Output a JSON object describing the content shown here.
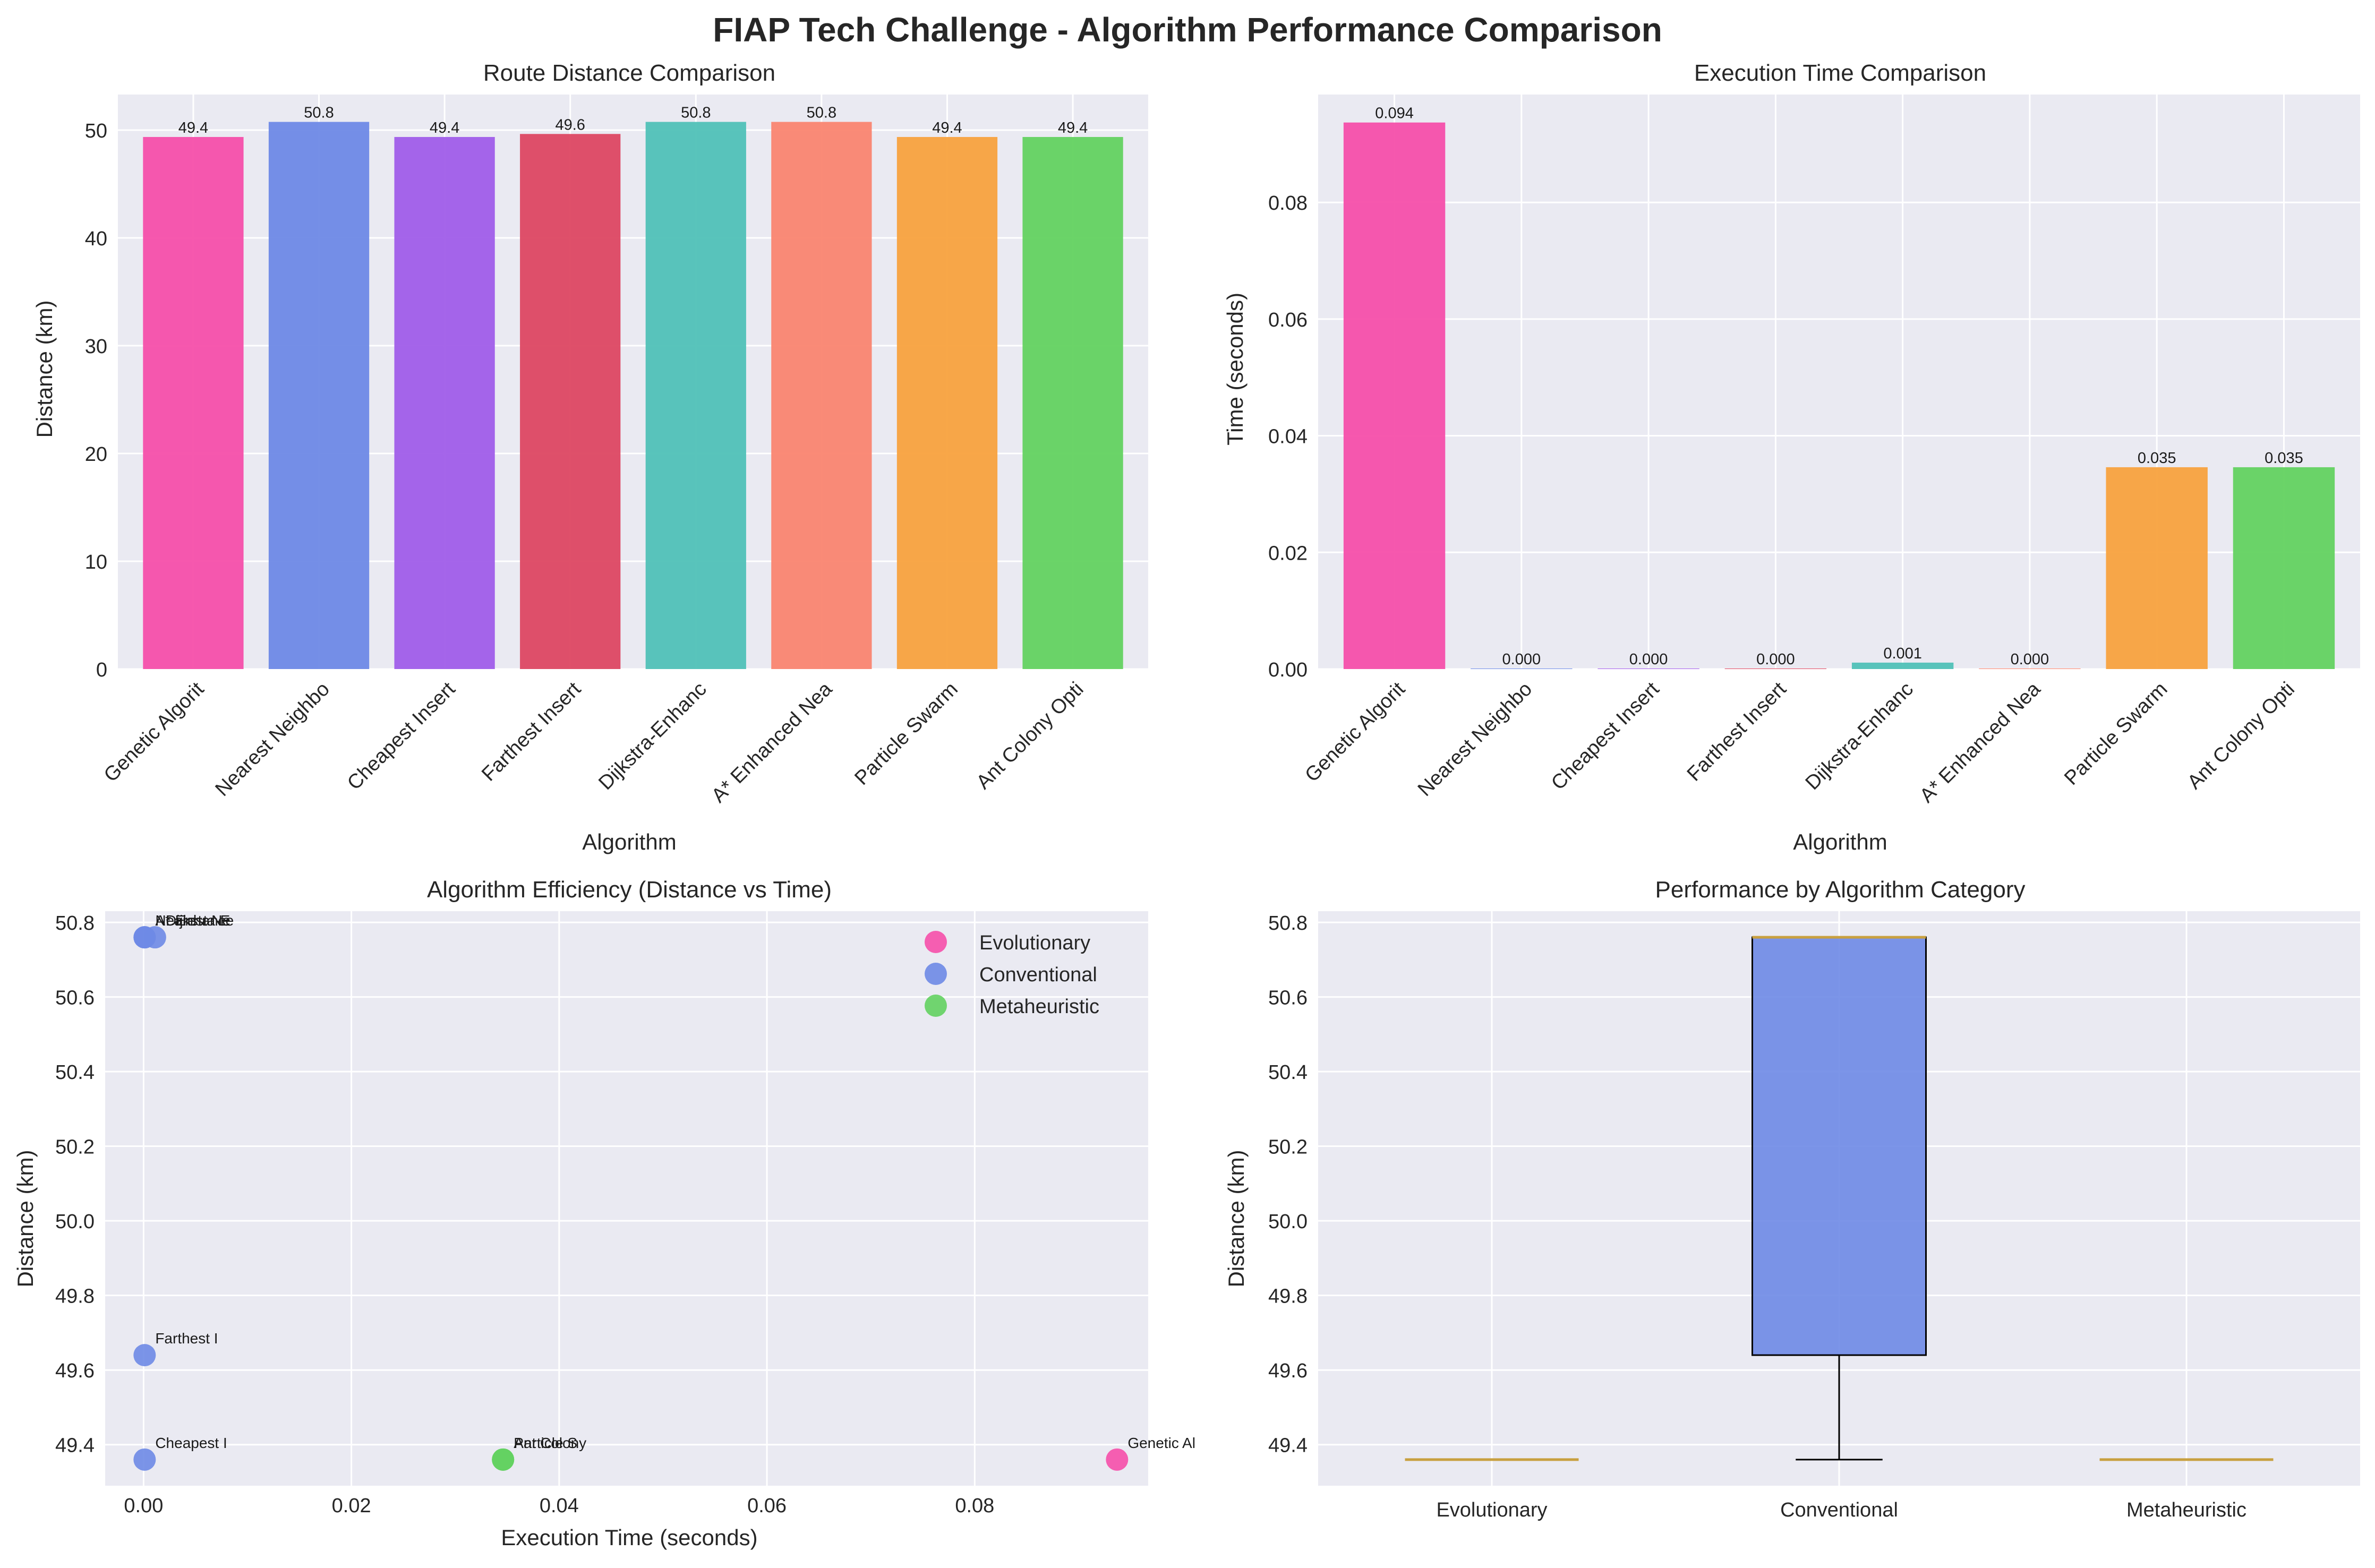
{
  "figure_title": "FIAP Tech Challenge - Algorithm Performance Comparison",
  "colors": {
    "plot_bg": "#EAEAF2",
    "grid": "#FFFFFF",
    "axis_text": "#262626",
    "label_text": "#1A1A1A",
    "series": [
      "#F64FAA",
      "#6E89E6",
      "#A05DE9",
      "#DD4762",
      "#50C1B7",
      "#FA8570",
      "#F8A23E",
      "#63D260"
    ],
    "whisker": "#000000",
    "median": "#C8A040"
  },
  "chart_data": [
    {
      "id": "distance-bar",
      "type": "bar",
      "title": "Route Distance Comparison",
      "xlabel": "Algorithm",
      "ylabel": "Distance (km)",
      "categories": [
        "Genetic Algorit",
        "Nearest Neighbo",
        "Cheapest Insert",
        "Farthest Insert",
        "Dijkstra-Enhanc",
        "A* Enhanced Nea",
        "Particle Swarm",
        "Ant Colony Opti"
      ],
      "values": [
        49.36,
        50.76,
        49.36,
        49.64,
        50.76,
        50.76,
        49.36,
        49.36
      ],
      "value_labels": [
        "49.4",
        "50.8",
        "49.4",
        "49.6",
        "50.8",
        "50.8",
        "49.4",
        "49.4"
      ],
      "ylim": [
        0,
        53.3
      ],
      "yticks": [
        0,
        10,
        20,
        30,
        40,
        50
      ],
      "ytick_labels": [
        "0",
        "10",
        "20",
        "30",
        "40",
        "50"
      ],
      "grid": true
    },
    {
      "id": "time-bar",
      "type": "bar",
      "title": "Execution Time Comparison",
      "xlabel": "Algorithm",
      "ylabel": "Time (seconds)",
      "categories": [
        "Genetic Algorit",
        "Nearest Neighbo",
        "Cheapest Insert",
        "Farthest Insert",
        "Dijkstra-Enhanc",
        "A* Enhanced Nea",
        "Particle Swarm",
        "Ant Colony Opti"
      ],
      "values": [
        0.0937,
        0.0001,
        0.0001,
        0.0001,
        0.0011,
        0.0001,
        0.0346,
        0.0346
      ],
      "value_labels": [
        "0.094",
        "0.000",
        "0.000",
        "0.000",
        "0.001",
        "0.000",
        "0.035",
        "0.035"
      ],
      "ylim": [
        0,
        0.0985
      ],
      "yticks": [
        0,
        0.02,
        0.04,
        0.06,
        0.08
      ],
      "ytick_labels": [
        "0.00",
        "0.02",
        "0.04",
        "0.06",
        "0.08"
      ],
      "grid": true
    },
    {
      "id": "efficiency-scatter",
      "type": "scatter",
      "title": "Algorithm Efficiency (Distance vs Time)",
      "xlabel": "Execution Time (seconds)",
      "ylabel": "Distance (km)",
      "xlim": [
        -0.0037,
        0.0967
      ],
      "ylim": [
        49.29,
        50.83
      ],
      "xticks": [
        0,
        0.02,
        0.04,
        0.06,
        0.08
      ],
      "xtick_labels": [
        "0.00",
        "0.02",
        "0.04",
        "0.06",
        "0.08"
      ],
      "yticks": [
        49.4,
        49.6,
        49.8,
        50.0,
        50.2,
        50.4,
        50.6,
        50.8
      ],
      "ytick_labels": [
        "49.4",
        "49.6",
        "49.8",
        "50.0",
        "50.2",
        "50.4",
        "50.6",
        "50.8"
      ],
      "series": [
        {
          "name": "Evolutionary",
          "color": "#F64FAA",
          "points": [
            {
              "x": 0.0937,
              "y": 49.36,
              "label": "Genetic Al"
            }
          ]
        },
        {
          "name": "Conventional",
          "color": "#6E89E6",
          "points": [
            {
              "x": 0.0001,
              "y": 50.76,
              "label": "Nearest Ne"
            },
            {
              "x": 0.0001,
              "y": 49.36,
              "label": "Cheapest I"
            },
            {
              "x": 0.0001,
              "y": 49.64,
              "label": "Farthest I"
            },
            {
              "x": 0.0011,
              "y": 50.76,
              "label": "Dijkstra-E"
            },
            {
              "x": 0.0001,
              "y": 50.76,
              "label": "A* Enhance"
            }
          ]
        },
        {
          "name": "Metaheuristic",
          "color": "#63D260",
          "points": [
            {
              "x": 0.0346,
              "y": 49.36,
              "label": "Particle S"
            },
            {
              "x": 0.0346,
              "y": 49.36,
              "label": "Ant Colony"
            }
          ]
        }
      ],
      "legend_position": "top-right",
      "grid": true
    },
    {
      "id": "category-box",
      "type": "box",
      "title": "Performance by Algorithm Category",
      "ylabel": "Distance (km)",
      "categories": [
        "Evolutionary",
        "Conventional",
        "Metaheuristic"
      ],
      "boxes": [
        {
          "color": "#F64FAA",
          "min": 49.36,
          "q1": 49.36,
          "median": 49.36,
          "q3": 49.36,
          "max": 49.36
        },
        {
          "color": "#6E89E6",
          "min": 49.36,
          "q1": 49.64,
          "median": 50.76,
          "q3": 50.76,
          "max": 50.76
        },
        {
          "color": "#63D260",
          "min": 49.36,
          "q1": 49.36,
          "median": 49.36,
          "q3": 49.36,
          "max": 49.36
        }
      ],
      "ylim": [
        49.29,
        50.83
      ],
      "yticks": [
        49.4,
        49.6,
        49.8,
        50.0,
        50.2,
        50.4,
        50.6,
        50.8
      ],
      "ytick_labels": [
        "49.4",
        "49.6",
        "49.8",
        "50.0",
        "50.2",
        "50.4",
        "50.6",
        "50.8"
      ],
      "grid": true
    }
  ]
}
